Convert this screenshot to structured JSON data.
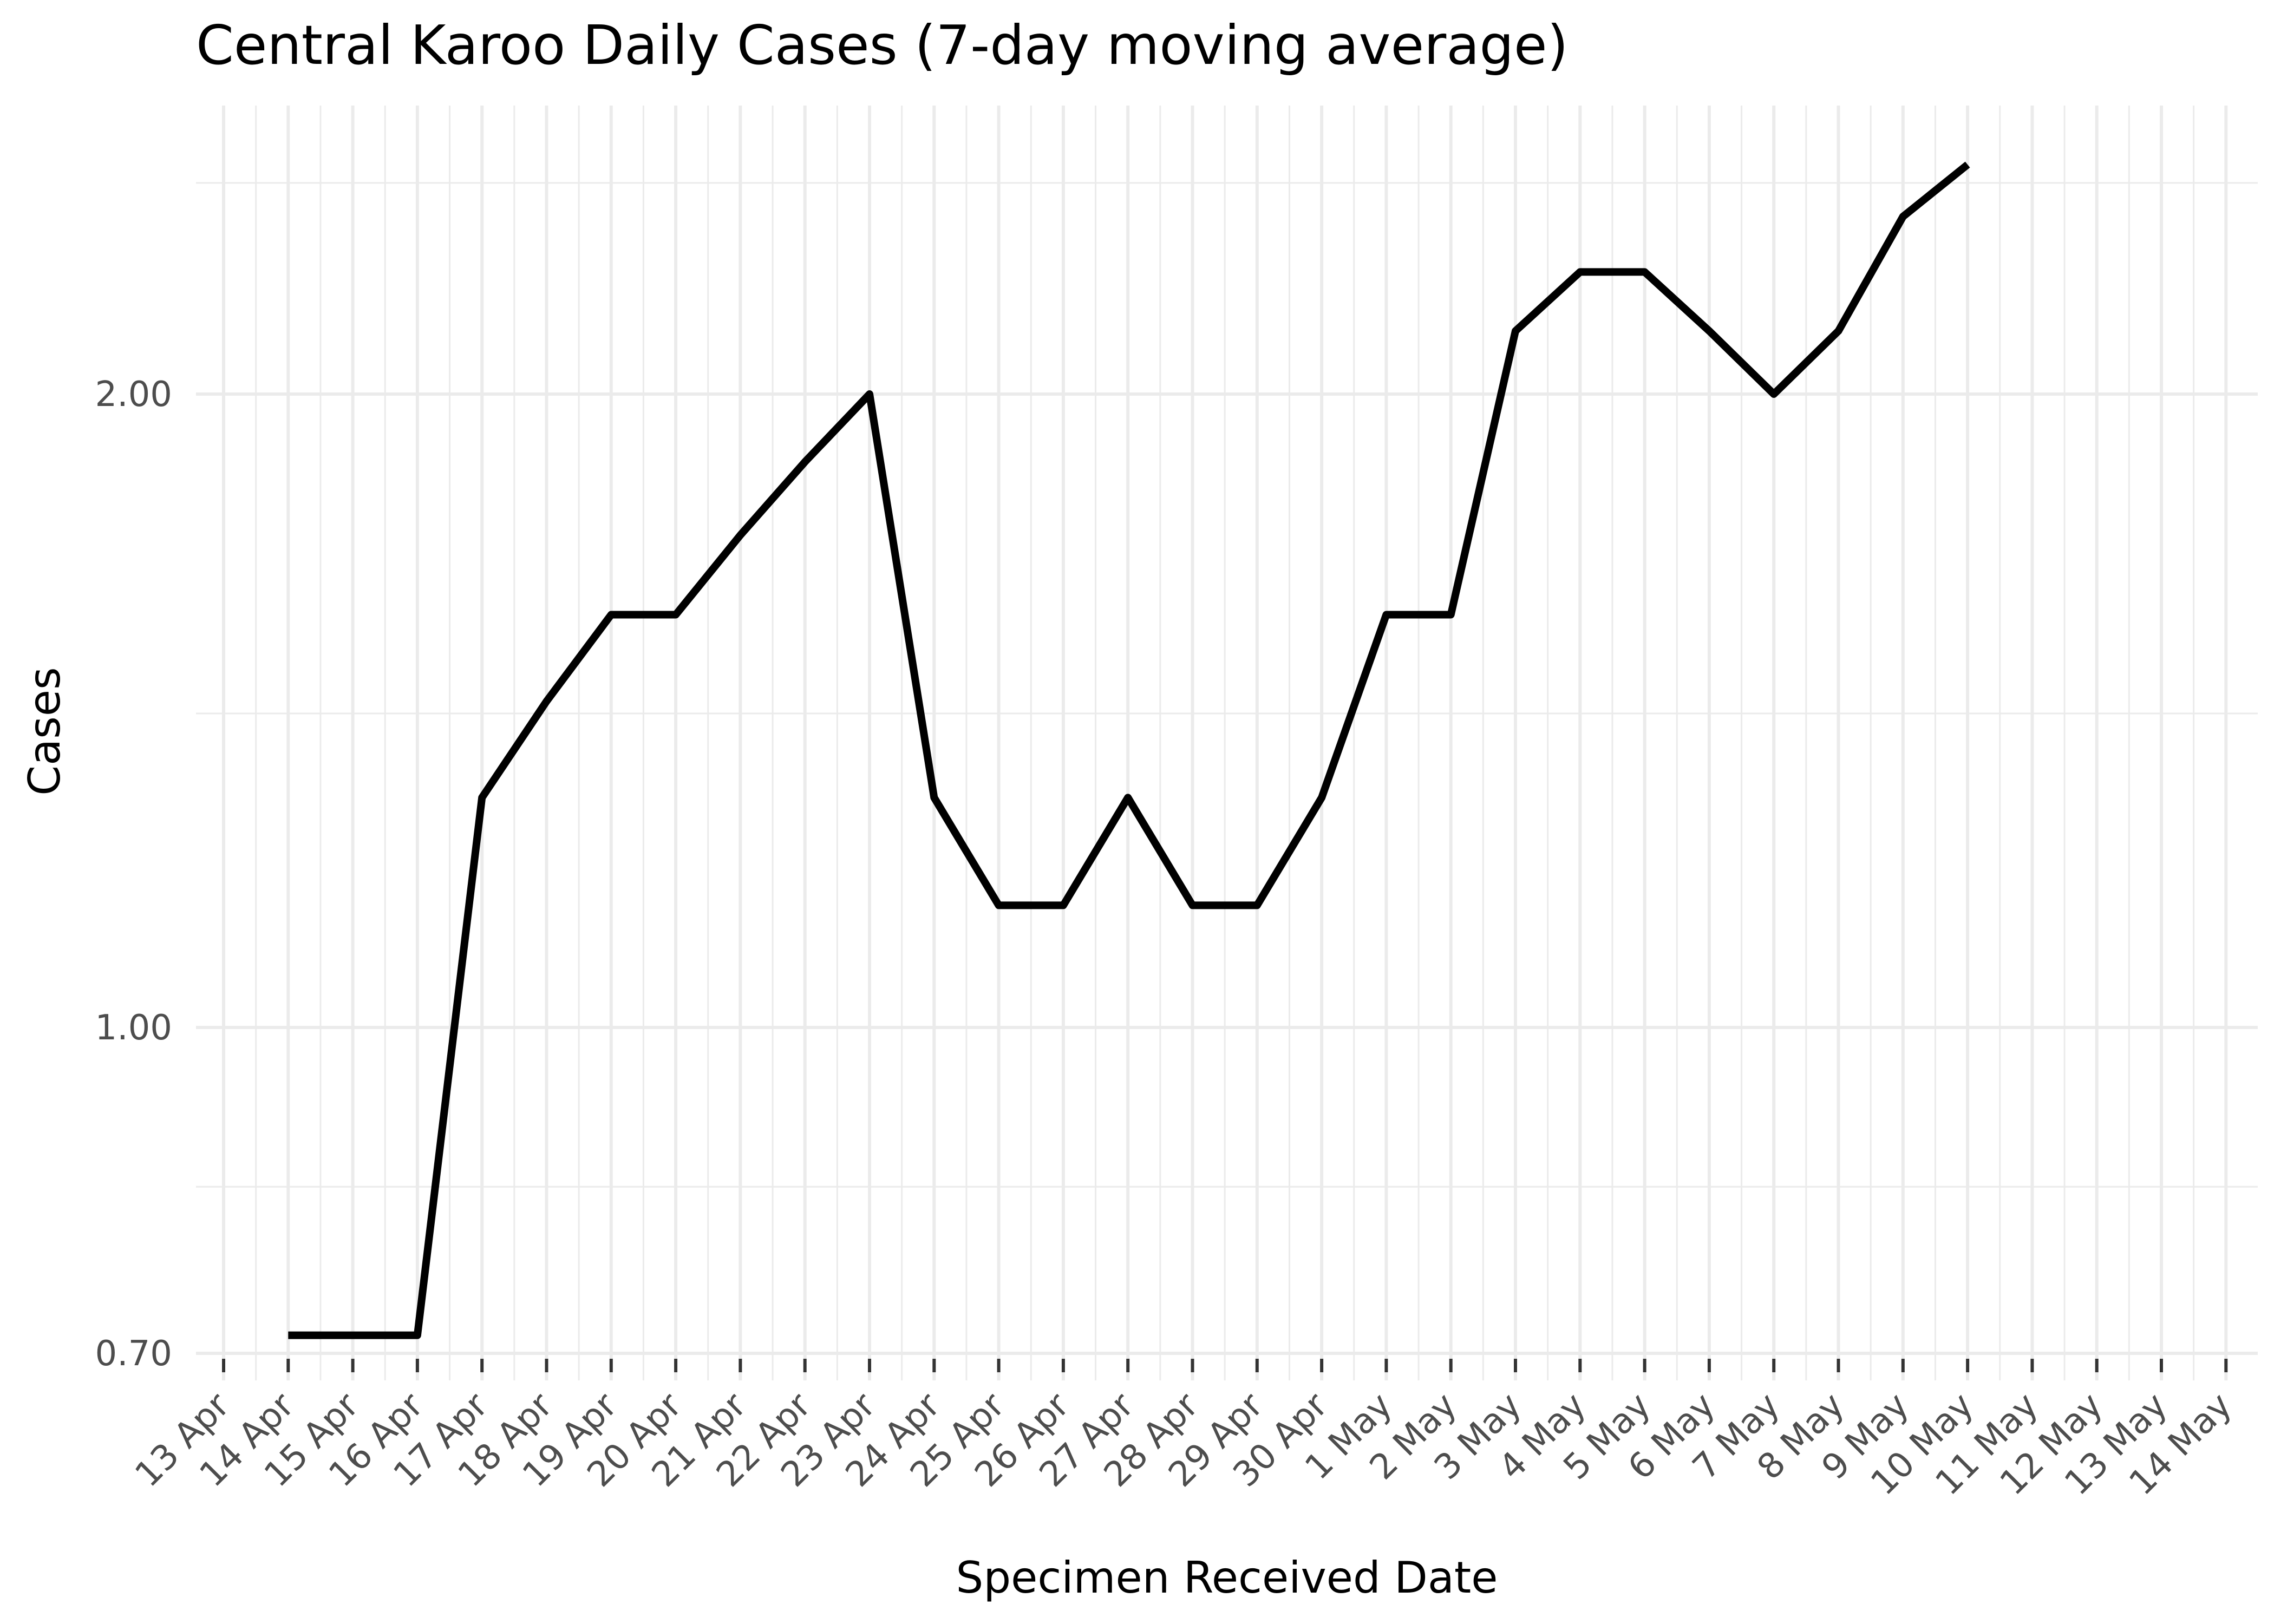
{
  "chart_data": {
    "type": "line",
    "title": "Central Karoo Daily Cases (7-day moving average)",
    "xlabel": "Specimen Received Date",
    "ylabel": "Cases",
    "y_scale": "log",
    "ylim": [
      0.66,
      2.85
    ],
    "y_ticks": [
      0.7,
      1.0,
      2.0
    ],
    "y_tick_labels": [
      "0.70",
      "1.00",
      "2.00"
    ],
    "y_minor_ticks": [
      0.84,
      1.41,
      2.52
    ],
    "x_tick_labels": [
      "13 Apr",
      "14 Apr",
      "15 Apr",
      "16 Apr",
      "17 Apr",
      "18 Apr",
      "19 Apr",
      "20 Apr",
      "21 Apr",
      "22 Apr",
      "23 Apr",
      "24 Apr",
      "25 Apr",
      "26 Apr",
      "27 Apr",
      "28 Apr",
      "29 Apr",
      "30 Apr",
      "1 May",
      "2 May",
      "3 May",
      "4 May",
      "5 May",
      "6 May",
      "7 May",
      "8 May",
      "9 May",
      "10 May",
      "11 May",
      "12 May",
      "13 May",
      "14 May"
    ],
    "x": [
      "14 Apr",
      "15 Apr",
      "16 Apr",
      "17 Apr",
      "18 Apr",
      "19 Apr",
      "20 Apr",
      "21 Apr",
      "22 Apr",
      "23 Apr",
      "24 Apr",
      "25 Apr",
      "26 Apr",
      "27 Apr",
      "28 Apr",
      "29 Apr",
      "30 Apr",
      "1 May",
      "2 May",
      "3 May",
      "4 May",
      "5 May",
      "6 May",
      "7 May",
      "8 May",
      "9 May",
      "10 May"
    ],
    "values": [
      0.714,
      0.714,
      0.714,
      1.286,
      1.429,
      1.571,
      1.571,
      1.714,
      1.857,
      2.0,
      1.286,
      1.143,
      1.143,
      1.286,
      1.143,
      1.143,
      1.286,
      1.571,
      1.571,
      2.143,
      2.286,
      2.286,
      2.143,
      2.0,
      2.143,
      2.429,
      2.571
    ],
    "grid": true,
    "legend": "none",
    "line_color": "#000000"
  }
}
